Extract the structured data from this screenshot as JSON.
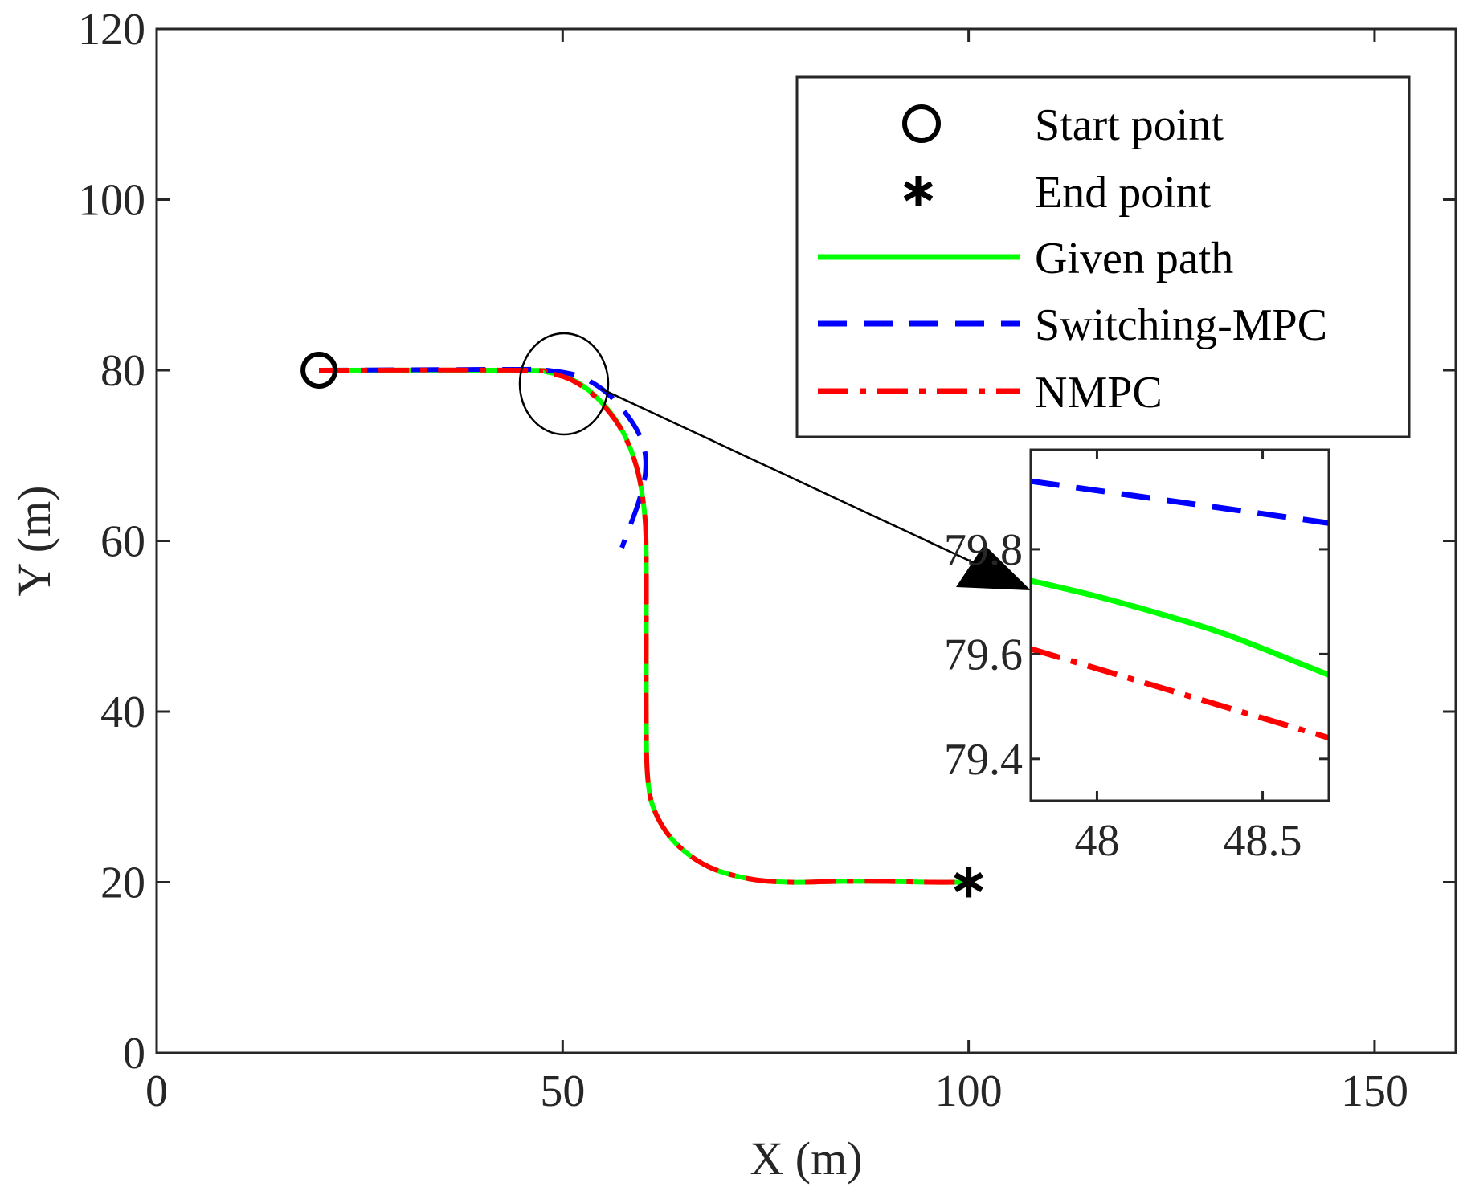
{
  "chart_data": [
    {
      "type": "line",
      "xlabel": "X (m)",
      "ylabel": "Y (m)",
      "xlim": [
        0,
        160
      ],
      "ylim": [
        0,
        120
      ],
      "xticks": [
        0,
        50,
        100,
        150
      ],
      "yticks": [
        0,
        20,
        40,
        60,
        80,
        100,
        120
      ],
      "grid": false,
      "legend_position": "top-right",
      "markers": [
        {
          "name": "Start point",
          "symbol": "circle",
          "x": 20,
          "y": 80
        },
        {
          "name": "End point",
          "symbol": "asterisk",
          "x": 100,
          "y": 20
        }
      ],
      "series": [
        {
          "name": "Given path",
          "color": "#00ff00",
          "style": "solid",
          "x": [
            20,
            45,
            48,
            51,
            54,
            57,
            59,
            60,
            60.3,
            60.3,
            60.5,
            61.5,
            64,
            68,
            73,
            78,
            84,
            90,
            95,
            100
          ],
          "y": [
            80,
            80,
            79.8,
            79,
            77,
            73.5,
            69,
            64,
            58,
            40,
            32,
            28,
            24.5,
            21.8,
            20.4,
            20,
            20.1,
            20.1,
            20,
            20
          ]
        },
        {
          "name": "Switching-MPC",
          "color": "#0000ff",
          "style": "dashed",
          "x": [
            20,
            45,
            48,
            52,
            55.5,
            58.5,
            60,
            60.2,
            59.5,
            58.8,
            58.2,
            57.8,
            57.3
          ],
          "y": [
            80,
            80.1,
            80,
            79.3,
            77.3,
            74,
            71,
            68,
            65,
            63,
            61.5,
            60.5,
            59.2
          ]
        },
        {
          "name": "NMPC",
          "color": "#ff0000",
          "style": "dash-dot",
          "x": [
            20,
            45,
            48,
            51,
            54,
            57,
            59,
            60,
            60.3,
            60.3,
            60.5,
            61.5,
            64,
            68,
            73,
            78,
            84,
            90,
            95,
            100
          ],
          "y": [
            80,
            80,
            79.7,
            78.9,
            76.9,
            73.4,
            69,
            64,
            58,
            40,
            32,
            28,
            24.5,
            21.8,
            20.4,
            20,
            20.1,
            20.1,
            20,
            20
          ]
        }
      ]
    },
    {
      "type": "line",
      "inset": true,
      "xlim": [
        47.8,
        48.7
      ],
      "ylim": [
        79.32,
        79.99
      ],
      "xticks": [
        48,
        48.5
      ],
      "xticklabels": [
        "48",
        "48.5"
      ],
      "yticks": [
        79.4,
        79.6,
        79.8
      ],
      "yticklabels": [
        "79.4",
        "79.6",
        "79.8"
      ],
      "series": [
        {
          "name": "Switching-MPC",
          "color": "#0000ff",
          "style": "dashed",
          "x": [
            47.8,
            48.7
          ],
          "y": [
            79.93,
            79.85
          ]
        },
        {
          "name": "Given path",
          "color": "#00ff00",
          "style": "solid",
          "x": [
            47.8,
            48.0,
            48.2,
            48.4,
            48.7
          ],
          "y": [
            79.74,
            79.71,
            79.675,
            79.635,
            79.56
          ]
        },
        {
          "name": "NMPC",
          "color": "#ff0000",
          "style": "dash-dot",
          "x": [
            47.8,
            48.7
          ],
          "y": [
            79.61,
            79.44
          ]
        }
      ]
    }
  ]
}
